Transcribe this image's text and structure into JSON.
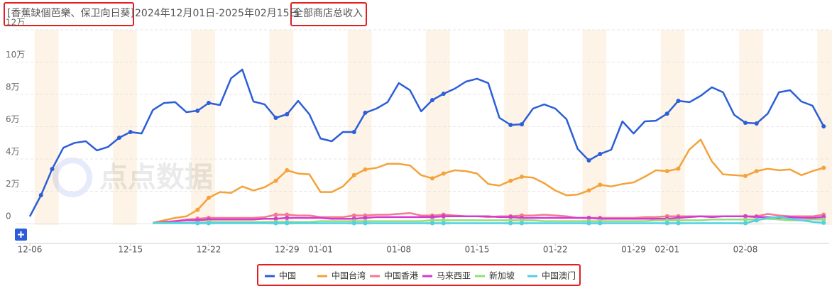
{
  "chart_data": {
    "type": "line",
    "title": "[香蕉缺個芭樂、保卫向日葵]",
    "subtitle": "2024年12月01日-2025年02月15日",
    "metric": "全部商店总收入",
    "watermark": "点点数据",
    "categories": [
      "12-06",
      null,
      null,
      null,
      null,
      null,
      null,
      null,
      null,
      "12-15",
      null,
      null,
      null,
      null,
      null,
      null,
      "12-22",
      null,
      null,
      null,
      null,
      null,
      null,
      "12-29",
      null,
      null,
      "01-01",
      null,
      null,
      null,
      null,
      null,
      null,
      "01-08",
      null,
      null,
      null,
      null,
      null,
      null,
      "01-15",
      null,
      null,
      null,
      null,
      null,
      null,
      "01-22",
      null,
      null,
      null,
      null,
      null,
      null,
      "01-29",
      null,
      null,
      "02-01",
      null,
      null,
      null,
      null,
      null,
      null,
      "02-08",
      null,
      null,
      null,
      null,
      null,
      null,
      null
    ],
    "ylim": [
      0,
      12
    ],
    "yticks": [
      0,
      {
        "value": 2,
        "label": "2万"
      },
      {
        "value": 4,
        "label": "4万"
      },
      {
        "value": 6,
        "label": "6万"
      },
      {
        "value": 8,
        "label": "8万"
      },
      {
        "value": 10,
        "label": "10万"
      },
      {
        "value": 12,
        "label": "12万"
      }
    ],
    "grid": true,
    "legend": "bottom",
    "series": [
      {
        "name": "中国",
        "color": "#2b5ed8",
        "values": [
          0.44,
          1.76,
          3.38,
          4.7,
          5.0,
          5.1,
          4.53,
          4.75,
          5.32,
          5.67,
          5.58,
          7.03,
          7.47,
          7.52,
          6.9,
          6.99,
          7.47,
          7.34,
          9.0,
          9.54,
          7.56,
          7.38,
          6.55,
          6.77,
          7.6,
          6.77,
          5.27,
          5.1,
          5.67,
          5.67,
          6.86,
          7.12,
          7.52,
          8.7,
          8.26,
          6.95,
          7.65,
          8.04,
          8.35,
          8.79,
          8.97,
          8.7,
          6.55,
          6.11,
          6.15,
          7.12,
          7.38,
          7.12,
          6.46,
          4.62,
          3.91,
          4.31,
          4.57,
          6.33,
          5.58,
          6.33,
          6.37,
          6.81,
          7.6,
          7.52,
          7.91,
          8.44,
          8.13,
          6.73,
          6.24,
          6.2,
          6.81,
          8.13,
          8.26,
          7.56,
          7.3,
          6.02
        ]
      },
      {
        "name": "中国台湾",
        "color": "#f4a23a",
        "values": [
          null,
          null,
          null,
          null,
          null,
          null,
          null,
          null,
          null,
          null,
          null,
          0.05,
          0.2,
          0.35,
          0.45,
          0.85,
          1.6,
          1.95,
          1.9,
          2.3,
          2.05,
          2.25,
          2.65,
          3.3,
          3.1,
          3.05,
          1.95,
          1.95,
          2.3,
          3.0,
          3.35,
          3.45,
          3.7,
          3.7,
          3.6,
          3.0,
          2.8,
          3.1,
          3.3,
          3.25,
          3.1,
          2.45,
          2.35,
          2.65,
          2.9,
          2.85,
          2.5,
          2.05,
          1.75,
          1.8,
          2.05,
          2.4,
          2.3,
          2.45,
          2.55,
          2.9,
          3.3,
          3.25,
          3.4,
          4.6,
          5.2,
          3.85,
          3.05,
          3.0,
          2.95,
          3.25,
          3.4,
          3.3,
          3.35,
          3.0,
          3.25,
          3.45
        ]
      },
      {
        "name": "中国香港",
        "color": "#f07b8f",
        "values": [
          null,
          null,
          null,
          null,
          null,
          null,
          null,
          null,
          null,
          null,
          null,
          0.05,
          0.1,
          0.15,
          0.25,
          0.3,
          0.35,
          0.35,
          0.35,
          0.35,
          0.35,
          0.4,
          0.55,
          0.55,
          0.5,
          0.5,
          0.4,
          0.4,
          0.4,
          0.5,
          0.5,
          0.55,
          0.55,
          0.6,
          0.65,
          0.5,
          0.5,
          0.55,
          0.5,
          0.45,
          0.45,
          0.4,
          0.45,
          0.45,
          0.5,
          0.5,
          0.55,
          0.5,
          0.45,
          0.35,
          0.35,
          0.35,
          0.35,
          0.35,
          0.35,
          0.4,
          0.4,
          0.45,
          0.45,
          0.45,
          0.45,
          0.45,
          0.45,
          0.45,
          0.45,
          0.45,
          0.6,
          0.5,
          0.45,
          0.45,
          0.45,
          0.55
        ]
      },
      {
        "name": "马来西亚",
        "color": "#d438d6",
        "values": [
          null,
          null,
          null,
          null,
          null,
          null,
          null,
          null,
          null,
          null,
          null,
          0.05,
          0.1,
          0.15,
          0.2,
          0.2,
          0.25,
          0.25,
          0.25,
          0.25,
          0.25,
          0.3,
          0.3,
          0.35,
          0.35,
          0.35,
          0.35,
          0.3,
          0.3,
          0.3,
          0.35,
          0.4,
          0.4,
          0.4,
          0.4,
          0.4,
          0.4,
          0.45,
          0.45,
          0.45,
          0.45,
          0.45,
          0.4,
          0.4,
          0.35,
          0.35,
          0.35,
          0.35,
          0.35,
          0.35,
          0.35,
          0.3,
          0.3,
          0.3,
          0.3,
          0.3,
          0.3,
          0.3,
          0.35,
          0.4,
          0.45,
          0.4,
          0.45,
          0.45,
          0.45,
          0.4,
          0.4,
          0.35,
          0.4,
          0.35,
          0.35,
          0.4
        ]
      },
      {
        "name": "新加坡",
        "color": "#8fdf7a",
        "values": [
          null,
          null,
          null,
          null,
          null,
          null,
          null,
          null,
          null,
          null,
          null,
          0.05,
          0.05,
          0.05,
          0.05,
          0.05,
          0.1,
          0.1,
          0.1,
          0.1,
          0.1,
          0.1,
          0.1,
          0.1,
          0.1,
          0.1,
          0.15,
          0.15,
          0.15,
          0.15,
          0.15,
          0.15,
          0.15,
          0.15,
          0.15,
          0.15,
          0.2,
          0.2,
          0.2,
          0.2,
          0.2,
          0.2,
          0.2,
          0.2,
          0.2,
          0.2,
          0.15,
          0.15,
          0.15,
          0.15,
          0.15,
          0.15,
          0.15,
          0.15,
          0.15,
          0.15,
          0.2,
          0.2,
          0.2,
          0.2,
          0.2,
          0.25,
          0.25,
          0.25,
          0.25,
          0.25,
          0.3,
          0.25,
          0.2,
          0.2,
          0.25,
          0.25
        ]
      },
      {
        "name": "中国澳门",
        "color": "#4fd0e6",
        "values": [
          null,
          null,
          null,
          null,
          null,
          null,
          null,
          null,
          null,
          null,
          null,
          0.02,
          0.02,
          0.02,
          0.02,
          0.02,
          0.02,
          0.02,
          0.02,
          0.02,
          0.02,
          0.02,
          0.02,
          0.02,
          0.02,
          0.02,
          0.02,
          0.02,
          0.02,
          0.02,
          0.02,
          0.02,
          0.02,
          0.02,
          0.02,
          0.02,
          0.02,
          0.02,
          0.02,
          0.02,
          0.02,
          0.02,
          0.02,
          0.02,
          0.02,
          0.02,
          0.02,
          0.02,
          0.02,
          0.02,
          0.02,
          0.02,
          0.02,
          0.02,
          0.02,
          0.02,
          0.02,
          0.02,
          0.02,
          0.02,
          0.02,
          0.02,
          0.02,
          0.02,
          0.02,
          0.2,
          0.35,
          0.4,
          0.3,
          0.2,
          0.1,
          0.05
        ]
      }
    ]
  }
}
